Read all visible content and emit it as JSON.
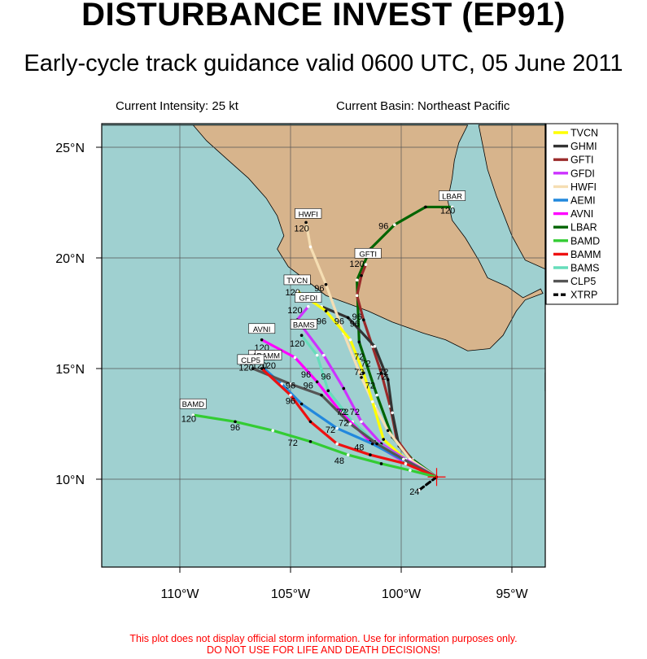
{
  "title": "DISTURBANCE INVEST (EP91)",
  "subtitle": "Early-cycle track guidance valid 0600 UTC, 05 June 2011",
  "current_intensity": "Current Intensity: 25 kt",
  "current_basin": "Current Basin: Northeast Pacific",
  "disclaimer_line1": "This plot does not display official storm information. Use for information purposes only.",
  "disclaimer_line2": "DO NOT USE FOR LIFE AND DEATH DECISIONS!",
  "colors": {
    "ocean": "#9fd0d0",
    "land": "#d7b48c"
  },
  "axes": {
    "lat_labels": [
      "25°N",
      "20°N",
      "15°N",
      "10°N"
    ],
    "lon_labels": [
      "110°W",
      "105°W",
      "100°W",
      "95°W"
    ],
    "lat_values": [
      25,
      20,
      15,
      10
    ],
    "lon_values": [
      -110,
      -105,
      -100,
      -95
    ]
  },
  "storm_position": {
    "lon": -98.4,
    "lat": 10.1
  },
  "legend": [
    {
      "name": "TVCN",
      "color": "#ffff00"
    },
    {
      "name": "GHMI",
      "color": "#333333"
    },
    {
      "name": "GFTI",
      "color": "#9a2a2a"
    },
    {
      "name": "GFDI",
      "color": "#cc33ff"
    },
    {
      "name": "HWFI",
      "color": "#f5deb3"
    },
    {
      "name": "AEMI",
      "color": "#2288dd"
    },
    {
      "name": "AVNI",
      "color": "#ff00ff"
    },
    {
      "name": "LBAR",
      "color": "#006400"
    },
    {
      "name": "BAMD",
      "color": "#33cc33"
    },
    {
      "name": "BAMM",
      "color": "#ee1111"
    },
    {
      "name": "BAMS",
      "color": "#66ddbb"
    },
    {
      "name": "CLP5",
      "color": "#555555"
    },
    {
      "name": "XTRP",
      "color": "#000000"
    }
  ],
  "tracks": [
    {
      "name": "LBAR",
      "points": [
        [
          -98.4,
          10.1
        ],
        [
          -99.5,
          10.9
        ],
        [
          -100.4,
          11.9
        ],
        [
          -101.1,
          13.8
        ],
        [
          -101.9,
          16.2
        ],
        [
          -102.0,
          19.0
        ],
        [
          -101.4,
          20.4
        ],
        [
          -100.3,
          21.5
        ],
        [
          -98.9,
          22.3
        ],
        [
          -97.7,
          22.3
        ]
      ],
      "labels": [
        [
          "72",
          -101.9,
          15.4
        ],
        [
          "96",
          -100.8,
          21.3
        ],
        [
          "120",
          -97.9,
          22.0
        ]
      ]
    },
    {
      "name": "GFTI",
      "points": [
        [
          -98.4,
          10.1
        ],
        [
          -99.4,
          10.7
        ],
        [
          -100.2,
          11.8
        ],
        [
          -100.5,
          13.3
        ],
        [
          -100.9,
          14.8
        ],
        [
          -101.3,
          16.0
        ],
        [
          -101.7,
          17.2
        ],
        [
          -102.0,
          18.3
        ],
        [
          -101.8,
          19.2
        ],
        [
          -101.6,
          19.7
        ]
      ],
      "labels": [
        [
          "72",
          -100.9,
          14.5
        ],
        [
          "96",
          -102.0,
          17.2
        ],
        [
          "120",
          -102.0,
          19.6
        ]
      ]
    },
    {
      "name": "GHMI",
      "points": [
        [
          -98.4,
          10.1
        ],
        [
          -99.5,
          10.8
        ],
        [
          -100.1,
          11.5
        ],
        [
          -100.4,
          13.0
        ],
        [
          -100.6,
          14.5
        ],
        [
          -101.2,
          16.0
        ],
        [
          -102.4,
          17.3
        ],
        [
          -103.6,
          17.8
        ]
      ],
      "labels": [
        [
          "72",
          -100.8,
          14.7
        ],
        [
          "96",
          -102.1,
          16.9
        ]
      ]
    },
    {
      "name": "HWFI",
      "points": [
        [
          -98.4,
          10.1
        ],
        [
          -99.6,
          10.9
        ],
        [
          -100.6,
          12.2
        ],
        [
          -101.2,
          13.3
        ],
        [
          -101.8,
          14.6
        ],
        [
          -102.6,
          16.6
        ],
        [
          -103.4,
          18.8
        ],
        [
          -104.1,
          20.5
        ],
        [
          -104.3,
          21.6
        ]
      ],
      "labels": [
        [
          "72",
          -101.6,
          15.1
        ],
        [
          "96",
          -103.7,
          18.5
        ],
        [
          "120",
          -104.5,
          21.2
        ]
      ]
    },
    {
      "name": "TVCN",
      "points": [
        [
          -98.4,
          10.1
        ],
        [
          -99.7,
          10.8
        ],
        [
          -100.8,
          11.8
        ],
        [
          -101.3,
          13.5
        ],
        [
          -101.7,
          14.8
        ],
        [
          -102.3,
          16.3
        ],
        [
          -103.4,
          17.6
        ],
        [
          -104.7,
          18.5
        ]
      ],
      "labels": [
        [
          "72",
          -101.4,
          14.1
        ],
        [
          "96",
          -103.6,
          17.0
        ],
        [
          "120",
          -104.9,
          18.3
        ]
      ]
    },
    {
      "name": "GFDI",
      "points": [
        [
          -98.4,
          10.1
        ],
        [
          -99.8,
          10.9
        ],
        [
          -100.9,
          11.6
        ],
        [
          -101.8,
          12.6
        ],
        [
          -102.6,
          14.1
        ],
        [
          -103.5,
          15.6
        ],
        [
          -104.7,
          17.2
        ],
        [
          -104.2,
          17.8
        ]
      ],
      "labels": [
        [
          "72",
          -101.9,
          14.7
        ],
        [
          "96",
          -102.8,
          17.0
        ],
        [
          "120",
          -104.8,
          17.5
        ]
      ]
    },
    {
      "name": "BAMS",
      "points": [
        [
          -98.4,
          10.1
        ],
        [
          -99.9,
          10.9
        ],
        [
          -101.2,
          11.7
        ],
        [
          -102.2,
          12.6
        ],
        [
          -103.3,
          14.0
        ],
        [
          -103.8,
          15.6
        ],
        [
          -104.5,
          16.5
        ]
      ],
      "labels": [
        [
          "72",
          -102.1,
          12.9
        ],
        [
          "96",
          -103.4,
          14.5
        ],
        [
          "120",
          -104.7,
          16.0
        ]
      ]
    },
    {
      "name": "AVNI",
      "points": [
        [
          -98.4,
          10.1
        ],
        [
          -99.9,
          10.8
        ],
        [
          -101.4,
          11.7
        ],
        [
          -102.7,
          13.0
        ],
        [
          -103.8,
          14.4
        ],
        [
          -104.8,
          15.5
        ],
        [
          -106.3,
          16.3
        ]
      ],
      "labels": [
        [
          "72",
          -102.6,
          12.9
        ],
        [
          "96",
          -104.3,
          14.6
        ],
        [
          "120",
          -106.3,
          15.8
        ]
      ]
    },
    {
      "name": "AEMI",
      "points": [
        [
          -98.4,
          10.1
        ],
        [
          -99.8,
          10.8
        ],
        [
          -101.3,
          11.6
        ],
        [
          -102.9,
          12.3
        ],
        [
          -104.5,
          13.4
        ],
        [
          -105.4,
          14.3
        ],
        [
          -106.2,
          15.0
        ]
      ],
      "labels": [
        [
          "72",
          -102.6,
          12.4
        ],
        [
          "96",
          -105.0,
          14.1
        ],
        [
          "120",
          -106.4,
          15.0
        ]
      ]
    },
    {
      "name": "CLP5",
      "points": [
        [
          -98.4,
          10.1
        ],
        [
          -99.9,
          10.9
        ],
        [
          -101.1,
          11.6
        ],
        [
          -102.3,
          12.5
        ],
        [
          -103.6,
          13.8
        ],
        [
          -105.0,
          14.3
        ],
        [
          -106.7,
          15.0
        ]
      ],
      "labels": [
        [
          "72",
          -102.7,
          12.9
        ],
        [
          "96",
          -104.2,
          14.1
        ],
        [
          "120",
          -107.0,
          14.9
        ]
      ]
    },
    {
      "name": "BAMM",
      "points": [
        [
          -98.4,
          10.1
        ],
        [
          -99.8,
          10.7
        ],
        [
          -101.4,
          11.1
        ],
        [
          -102.9,
          11.6
        ],
        [
          -104.1,
          12.6
        ],
        [
          -105.0,
          13.8
        ],
        [
          -106.3,
          15.0
        ]
      ],
      "labels": [
        [
          "48",
          -101.9,
          11.3
        ],
        [
          "72",
          -103.2,
          12.1
        ],
        [
          "96",
          -105.0,
          13.4
        ],
        [
          "120",
          -106.0,
          15.0
        ]
      ]
    },
    {
      "name": "BAMD",
      "points": [
        [
          -98.4,
          10.1
        ],
        [
          -99.6,
          10.4
        ],
        [
          -100.9,
          10.7
        ],
        [
          -102.4,
          11.1
        ],
        [
          -104.1,
          11.7
        ],
        [
          -105.8,
          12.2
        ],
        [
          -107.5,
          12.6
        ],
        [
          -109.4,
          12.9
        ]
      ],
      "labels": [
        [
          "48",
          -102.8,
          10.7
        ],
        [
          "72",
          -104.9,
          11.5
        ],
        [
          "96",
          -107.5,
          12.2
        ],
        [
          "120",
          -109.6,
          12.6
        ]
      ]
    },
    {
      "name": "XTRP",
      "points": [
        [
          -98.4,
          10.1
        ],
        [
          -99.2,
          9.5
        ]
      ],
      "labels": [
        [
          "24",
          -99.4,
          9.3
        ]
      ]
    }
  ],
  "track_end_tags": [
    {
      "text": "HWFI",
      "lon": -104.2,
      "lat": 21.9
    },
    {
      "text": "GFTI",
      "lon": -101.5,
      "lat": 20.1
    },
    {
      "text": "LBAR",
      "lon": -97.7,
      "lat": 22.7
    },
    {
      "text": "TVCN",
      "lon": -104.7,
      "lat": 18.9
    },
    {
      "text": "GFDI",
      "lon": -104.2,
      "lat": 18.1
    },
    {
      "text": "BAMS",
      "lon": -104.4,
      "lat": 16.9
    },
    {
      "text": "AVNI",
      "lon": -106.3,
      "lat": 16.7
    },
    {
      "text": "AEMI",
      "lon": -106.3,
      "lat": 15.5
    },
    {
      "text": "BAMM",
      "lon": -106.0,
      "lat": 15.5
    },
    {
      "text": "CLP5",
      "lon": -106.8,
      "lat": 15.3
    },
    {
      "text": "BAMD",
      "lon": -109.4,
      "lat": 13.3
    }
  ],
  "land_polygon": [
    [
      -113.5,
      26
    ],
    [
      -97.0,
      26
    ],
    [
      -97.4,
      25.2
    ],
    [
      -97.6,
      24.4
    ],
    [
      -97.7,
      23.6
    ],
    [
      -97.9,
      22.6
    ],
    [
      -97.7,
      21.7
    ],
    [
      -97.1,
      20.9
    ],
    [
      -96.5,
      19.9
    ],
    [
      -96.1,
      19.1
    ],
    [
      -95.2,
      18.7
    ],
    [
      -94.5,
      18.2
    ],
    [
      -93.7,
      18.6
    ],
    [
      -93.6,
      18.4
    ],
    [
      -94.4,
      18.1
    ],
    [
      -94.8,
      17.6
    ],
    [
      -95.4,
      16.5
    ],
    [
      -96.0,
      15.9
    ],
    [
      -97.0,
      15.8
    ],
    [
      -98.0,
      16.3
    ],
    [
      -99.0,
      16.6
    ],
    [
      -100.4,
      17.1
    ],
    [
      -101.5,
      17.6
    ],
    [
      -102.3,
      17.9
    ],
    [
      -103.4,
      18.3
    ],
    [
      -104.3,
      19.0
    ],
    [
      -105.1,
      19.6
    ],
    [
      -105.6,
      20.4
    ],
    [
      -105.3,
      21.0
    ],
    [
      -105.6,
      21.9
    ],
    [
      -106.1,
      22.7
    ],
    [
      -106.9,
      23.6
    ],
    [
      -107.8,
      24.4
    ],
    [
      -108.8,
      25.3
    ],
    [
      -109.4,
      26
    ],
    [
      -113.5,
      26
    ]
  ],
  "land_polygon_2": [
    [
      -93.5,
      14.8
    ],
    [
      -92.3,
      14.5
    ],
    [
      -91.4,
      14.0
    ],
    [
      -93.5,
      14.0
    ]
  ],
  "land_polygon_3": [
    [
      -96.5,
      26
    ],
    [
      -93.5,
      26
    ],
    [
      -93.5,
      19.5
    ],
    [
      -94.4,
      19.9
    ],
    [
      -95.0,
      21.0
    ],
    [
      -95.7,
      22.8
    ],
    [
      -96.1,
      24.0
    ],
    [
      -96.3,
      25.0
    ]
  ]
}
